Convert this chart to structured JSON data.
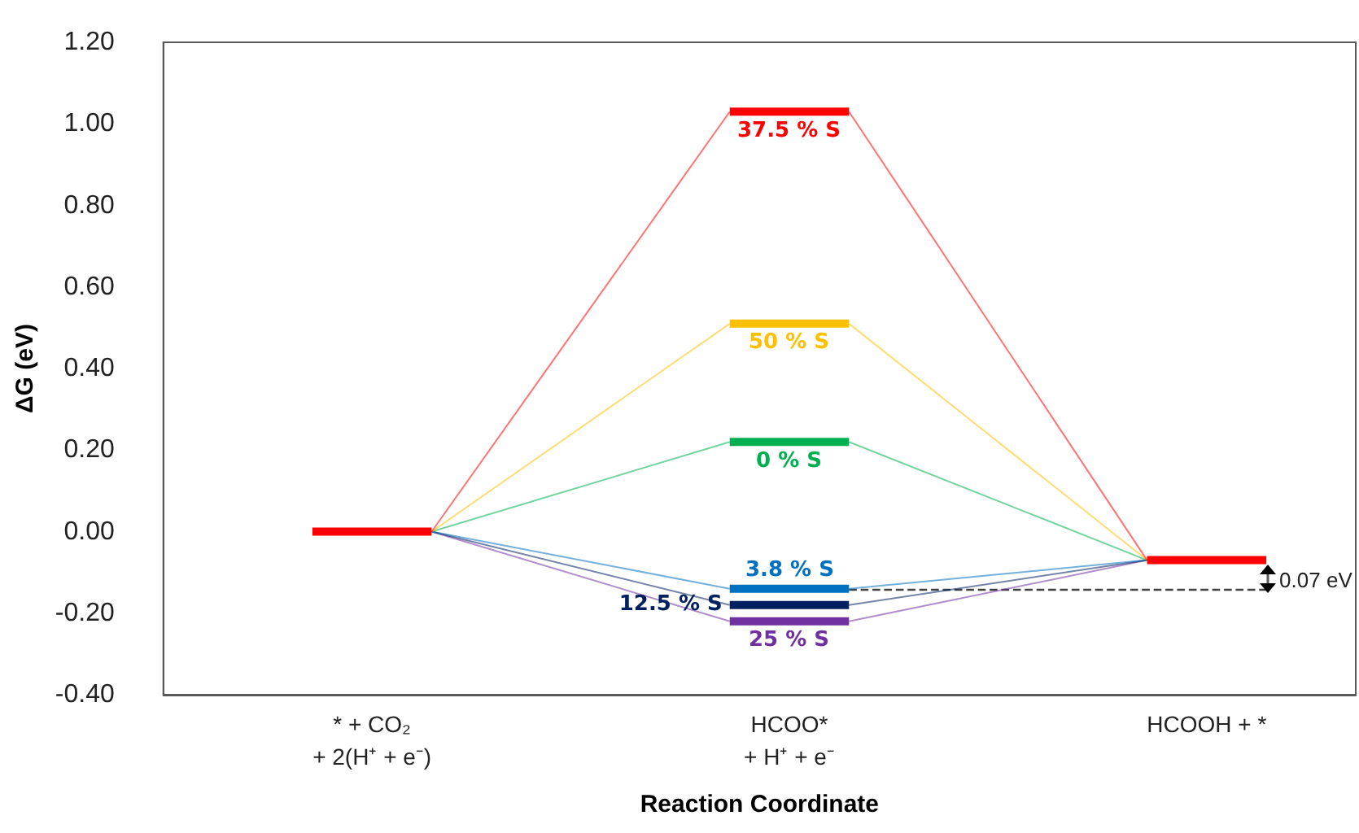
{
  "chart_data": {
    "type": "line",
    "xlabel": "Reaction Coordinate",
    "ylabel": "ΔG (eV)",
    "categories": [
      null,
      null,
      null,
      "* + CO₂\n+ 2(H⁺ + e⁻)",
      null,
      null,
      null,
      null,
      null,
      null,
      "HCOO*\n+ H⁺ + e⁻",
      null,
      null,
      null,
      null,
      null,
      null,
      "HCOOH + *",
      null,
      null
    ],
    "series": [
      {
        "color": "#ff0000",
        "values": [
          null,
          null,
          0,
          0,
          0,
          null,
          null,
          null,
          null,
          null,
          null,
          null,
          null,
          null,
          null,
          null,
          null,
          null,
          null,
          null
        ]
      },
      {
        "color": "#ff0000",
        "values": [
          null,
          null,
          null,
          null,
          null,
          null,
          null,
          null,
          null,
          null,
          null,
          null,
          null,
          null,
          null,
          null,
          -0.07,
          -0.07,
          -0.07,
          null
        ]
      },
      {
        "color": "#ff0000",
        "values": [
          null,
          null,
          null,
          null,
          0,
          null,
          null,
          null,
          null,
          1.03,
          null,
          null,
          null,
          null,
          null,
          null,
          null,
          null,
          null,
          null
        ]
      },
      {
        "color": "#ff0000",
        "values": [
          null,
          null,
          null,
          null,
          null,
          null,
          null,
          null,
          null,
          null,
          null,
          1.03,
          null,
          null,
          null,
          null,
          -0.07,
          null,
          null,
          null
        ]
      },
      {
        "color": "#ffc000",
        "values": [
          null,
          null,
          null,
          null,
          0,
          null,
          null,
          null,
          null,
          0.51,
          null,
          null,
          null,
          null,
          null,
          null,
          null,
          null,
          null,
          null
        ]
      },
      {
        "color": "#ffc000",
        "values": [
          null,
          null,
          null,
          null,
          null,
          null,
          null,
          null,
          null,
          null,
          null,
          0.51,
          null,
          null,
          null,
          null,
          -0.07,
          null,
          null,
          null
        ]
      },
      {
        "color": "#00b050",
        "values": [
          null,
          null,
          null,
          null,
          0,
          null,
          null,
          null,
          null,
          0.22,
          null,
          null,
          null,
          null,
          null,
          null,
          null,
          null,
          null,
          null
        ]
      },
      {
        "color": "#00b050",
        "values": [
          null,
          null,
          null,
          null,
          null,
          null,
          null,
          null,
          null,
          null,
          null,
          0.22,
          null,
          null,
          null,
          null,
          -0.07,
          null,
          null,
          null
        ]
      },
      {
        "color": "#0070c0",
        "values": [
          null,
          null,
          null,
          null,
          0,
          null,
          null,
          null,
          null,
          -0.14,
          null,
          null,
          null,
          null,
          null,
          null,
          null,
          null,
          null,
          null
        ]
      },
      {
        "color": "#0070c0",
        "values": [
          null,
          null,
          null,
          null,
          null,
          null,
          null,
          null,
          null,
          null,
          null,
          -0.14,
          null,
          null,
          null,
          null,
          -0.07,
          null,
          null,
          null
        ]
      },
      {
        "color": "#002060",
        "values": [
          null,
          null,
          null,
          null,
          0,
          null,
          null,
          null,
          null,
          -0.18,
          null,
          null,
          null,
          null,
          null,
          null,
          null,
          null,
          null,
          null
        ]
      },
      {
        "color": "#002060",
        "values": [
          null,
          null,
          null,
          null,
          null,
          null,
          null,
          null,
          null,
          null,
          null,
          -0.18,
          null,
          null,
          null,
          null,
          -0.07,
          null,
          null,
          null
        ]
      },
      {
        "color": "#7030a0",
        "values": [
          null,
          null,
          null,
          null,
          0,
          null,
          null,
          null,
          null,
          -0.22,
          null,
          null,
          null,
          null,
          null,
          null,
          null,
          null,
          null,
          null
        ]
      },
      {
        "color": "#7030a0",
        "values": [
          null,
          null,
          null,
          null,
          null,
          null,
          null,
          null,
          null,
          null,
          null,
          -0.22,
          null,
          null,
          null,
          null,
          -0.07,
          null,
          null,
          null
        ]
      },
      {
        "name": "37.5 % S",
        "color": "#ff0000",
        "values": [
          null,
          null,
          null,
          null,
          null,
          null,
          null,
          null,
          null,
          1.03,
          1.03,
          1.03,
          null,
          null,
          null,
          null,
          null,
          null,
          null,
          null
        ]
      },
      {
        "name": "50 % S",
        "color": "#ffc000",
        "values": [
          null,
          null,
          null,
          null,
          null,
          null,
          null,
          null,
          null,
          0.51,
          0.51,
          0.51,
          null,
          null,
          null,
          null,
          null,
          null,
          null,
          null
        ]
      },
      {
        "name": "0 % S",
        "color": "#00b050",
        "values": [
          null,
          null,
          null,
          null,
          null,
          null,
          null,
          null,
          null,
          0.22,
          0.22,
          0.22,
          null,
          null,
          null,
          null,
          null,
          null,
          null,
          null
        ]
      },
      {
        "name": "3.8 % S",
        "color": "#0070c0",
        "values": [
          null,
          null,
          null,
          null,
          null,
          null,
          null,
          null,
          null,
          -0.14,
          -0.14,
          -0.14,
          null,
          null,
          null,
          null,
          null,
          null,
          null,
          null
        ]
      },
      {
        "name": "12.5 % S",
        "color": "#002060",
        "values": [
          null,
          null,
          null,
          null,
          null,
          null,
          null,
          null,
          null,
          -0.18,
          -0.18,
          -0.18,
          null,
          null,
          null,
          null,
          null,
          null,
          null,
          null
        ]
      },
      {
        "name": "25 % S",
        "color": "#7030a0",
        "values": [
          null,
          null,
          null,
          null,
          null,
          null,
          null,
          null,
          null,
          -0.22,
          -0.22,
          -0.22,
          null,
          null,
          null,
          null,
          null,
          null,
          null,
          null
        ]
      }
    ],
    "ylim": [
      -0.4,
      1.2
    ],
    "yticks": [
      {
        "value": -0.4,
        "label": "-0.40"
      },
      {
        "value": -0.2,
        "label": "-0.20"
      },
      {
        "value": 0,
        "label": "0.00"
      },
      {
        "value": 0.2,
        "label": "0.20"
      },
      {
        "value": 0.4,
        "label": "0.40"
      },
      {
        "value": 0.6,
        "label": "0.60"
      },
      {
        "value": 0.8,
        "label": "0.80"
      },
      {
        "value": 1,
        "label": "1.00"
      },
      {
        "value": 1.2,
        "label": "1.20"
      }
    ],
    "ref_lines": [
      {
        "axis": "y",
        "value": -0.14,
        "color": "#404040",
        "line_style": "dashed"
      }
    ],
    "annotations": [
      "0.07 eV"
    ],
    "grid": false,
    "legend": false,
    "line_style": "solid"
  }
}
